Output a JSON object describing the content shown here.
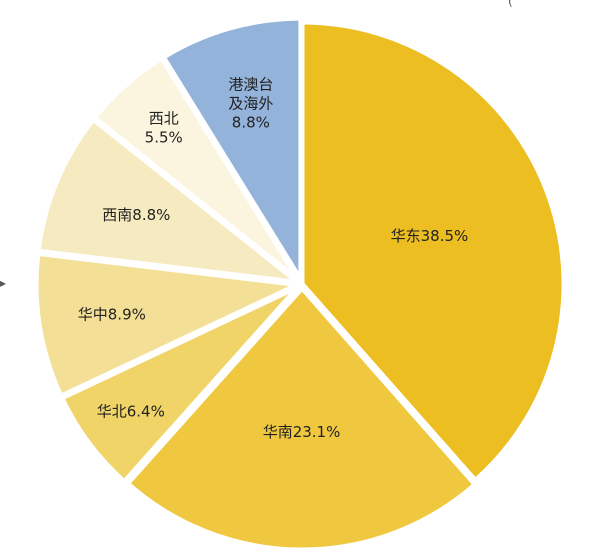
{
  "chart_data": {
    "type": "pie",
    "start_angle_deg": 0,
    "direction": "clockwise",
    "slices": [
      {
        "name": "华东",
        "value": 38.5,
        "label": "华东38.5%",
        "color": "#EDBE21"
      },
      {
        "name": "华南",
        "value": 23.1,
        "label": "华南23.1%",
        "color": "#F0C840"
      },
      {
        "name": "华北",
        "value": 6.4,
        "label": "华北6.4%",
        "color": "#F0D468"
      },
      {
        "name": "华中",
        "value": 8.9,
        "label": "华中8.9%",
        "color": "#F4DF96"
      },
      {
        "name": "西南",
        "value": 8.8,
        "label": "西南8.8%",
        "color": "#F6EBC0"
      },
      {
        "name": "西北",
        "value": 5.5,
        "label": "西北 5.5%",
        "color": "#FBF5DF"
      },
      {
        "name": "港澳台及海外",
        "value": 8.8,
        "label": "港澳台 及海外 8.8%",
        "color": "#94B3DA"
      }
    ]
  },
  "edge_marks": {
    "left_arrow": "▸",
    "top_right_fragment": "("
  }
}
